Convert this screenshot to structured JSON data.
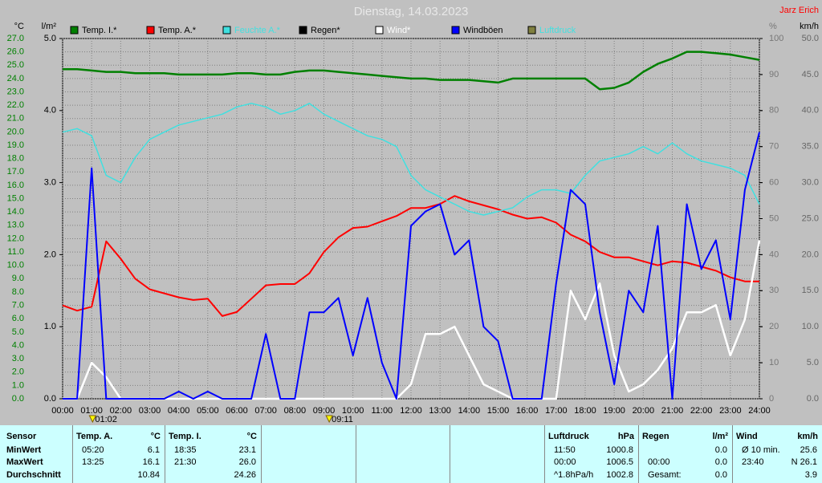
{
  "chart_data": {
    "type": "line",
    "title": "Dienstag, 14.03.2023",
    "subtitle": "Jarz Erich",
    "y_label": "°C",
    "y2_label": "l/m²",
    "y3_label": "%",
    "y4_label": "km/h",
    "grid": true,
    "xlim": [
      0,
      24
    ],
    "xticks": [
      {
        "value": 0,
        "label": "00:00"
      },
      {
        "value": 1,
        "label": "01:00"
      },
      {
        "value": 2,
        "label": "02:00"
      },
      {
        "value": 3,
        "label": "03:00"
      },
      {
        "value": 4,
        "label": "04:00"
      },
      {
        "value": 5,
        "label": "05:00"
      },
      {
        "value": 6,
        "label": "06:00"
      },
      {
        "value": 7,
        "label": "07:00"
      },
      {
        "value": 8,
        "label": "08:00"
      },
      {
        "value": 9,
        "label": "09:00"
      },
      {
        "value": 10,
        "label": "10:00"
      },
      {
        "value": 11,
        "label": "11:00"
      },
      {
        "value": 12,
        "label": "12:00"
      },
      {
        "value": 13,
        "label": "13:00"
      },
      {
        "value": 14,
        "label": "14:00"
      },
      {
        "value": 15,
        "label": "15:00"
      },
      {
        "value": 16,
        "label": "16:00"
      },
      {
        "value": 17,
        "label": "17:00"
      },
      {
        "value": 18,
        "label": "18:00"
      },
      {
        "value": 19,
        "label": "19:00"
      },
      {
        "value": 20,
        "label": "20:00"
      },
      {
        "value": 21,
        "label": "21:00"
      },
      {
        "value": 22,
        "label": "22:00"
      },
      {
        "value": 23,
        "label": "23:00"
      },
      {
        "value": 24,
        "label": "24:00"
      }
    ],
    "ylim": [
      0,
      27
    ],
    "yticks": [
      {
        "value": 0,
        "label": "0.0"
      },
      {
        "value": 1,
        "label": "1.0"
      },
      {
        "value": 2,
        "label": "2.0"
      },
      {
        "value": 3,
        "label": "3.0"
      },
      {
        "value": 4,
        "label": "4.0"
      },
      {
        "value": 5,
        "label": "5.0"
      },
      {
        "value": 6,
        "label": "6.0"
      },
      {
        "value": 7,
        "label": "7.0"
      },
      {
        "value": 8,
        "label": "8.0"
      },
      {
        "value": 9,
        "label": "9.0"
      },
      {
        "value": 10,
        "label": "10.0"
      },
      {
        "value": 11,
        "label": "11.0"
      },
      {
        "value": 12,
        "label": "12.0"
      },
      {
        "value": 13,
        "label": "13.0"
      },
      {
        "value": 14,
        "label": "14.0"
      },
      {
        "value": 15,
        "label": "15.0"
      },
      {
        "value": 16,
        "label": "16.0"
      },
      {
        "value": 17,
        "label": "17.0"
      },
      {
        "value": 18,
        "label": "18.0"
      },
      {
        "value": 19,
        "label": "19.0"
      },
      {
        "value": 20,
        "label": "20.0"
      },
      {
        "value": 21,
        "label": "21.0"
      },
      {
        "value": 22,
        "label": "22.0"
      },
      {
        "value": 23,
        "label": "23.0"
      },
      {
        "value": 24,
        "label": "24.0"
      },
      {
        "value": 25,
        "label": "25.0"
      },
      {
        "value": 26,
        "label": "26.0"
      },
      {
        "value": 27,
        "label": "27.0"
      }
    ],
    "y2lim": [
      0,
      5
    ],
    "y2ticks": [
      {
        "value": 0,
        "label": "0.0"
      },
      {
        "value": 1,
        "label": "1.0"
      },
      {
        "value": 2,
        "label": "2.0"
      },
      {
        "value": 3,
        "label": "3.0"
      },
      {
        "value": 4,
        "label": "4.0"
      },
      {
        "value": 5,
        "label": "5.0"
      }
    ],
    "y3lim": [
      0,
      100
    ],
    "y3ticks": [
      0,
      10,
      20,
      30,
      40,
      50,
      60,
      70,
      80,
      90,
      100
    ],
    "y4lim": [
      0,
      50
    ],
    "y4ticks": [
      {
        "value": 0,
        "label": "0.0"
      },
      {
        "value": 5,
        "label": "5.0"
      },
      {
        "value": 10,
        "label": "10.0"
      },
      {
        "value": 15,
        "label": "15.0"
      },
      {
        "value": 20,
        "label": "20.0"
      },
      {
        "value": 25,
        "label": "25.0"
      },
      {
        "value": 30,
        "label": "30.0"
      },
      {
        "value": 35,
        "label": "35.0"
      },
      {
        "value": 40,
        "label": "40.0"
      },
      {
        "value": 45,
        "label": "45.0"
      },
      {
        "value": 50,
        "label": "50.0"
      }
    ],
    "x": [
      0,
      0.5,
      1,
      1.5,
      2,
      2.5,
      3,
      3.5,
      4,
      4.5,
      5,
      5.5,
      6,
      6.5,
      7,
      7.5,
      8,
      8.5,
      9,
      9.5,
      10,
      10.5,
      11,
      11.5,
      12,
      12.5,
      13,
      13.5,
      14,
      14.5,
      15,
      15.5,
      16,
      16.5,
      17,
      17.5,
      18,
      18.5,
      19,
      19.5,
      20,
      20.5,
      21,
      21.5,
      22,
      22.5,
      23,
      23.5,
      24
    ],
    "series": [
      {
        "name": "Temp. I.*",
        "color": "#008000",
        "label_color": "#000000",
        "axis": "y",
        "width": 2.5,
        "values": [
          24.7,
          24.7,
          24.6,
          24.5,
          24.5,
          24.4,
          24.4,
          24.4,
          24.3,
          24.3,
          24.3,
          24.3,
          24.4,
          24.4,
          24.3,
          24.3,
          24.5,
          24.6,
          24.6,
          24.5,
          24.4,
          24.3,
          24.2,
          24.1,
          24.0,
          24.0,
          23.9,
          23.9,
          23.9,
          23.8,
          23.7,
          24.0,
          24.0,
          24.0,
          24.0,
          24.0,
          24.0,
          23.2,
          23.3,
          23.7,
          24.5,
          25.1,
          25.5,
          26.0,
          26.0,
          25.9,
          25.8,
          25.6,
          25.4
        ]
      },
      {
        "name": "Temp. A.*",
        "color": "#ff0000",
        "label_color": "#000000",
        "axis": "y",
        "width": 2,
        "values": [
          7.0,
          6.6,
          6.9,
          11.8,
          10.5,
          9.0,
          8.2,
          7.9,
          7.6,
          7.4,
          7.5,
          6.2,
          6.5,
          7.5,
          8.5,
          8.6,
          8.6,
          9.4,
          11.0,
          12.1,
          12.8,
          12.9,
          13.3,
          13.7,
          14.3,
          14.3,
          14.6,
          15.2,
          14.8,
          14.5,
          14.2,
          13.8,
          13.5,
          13.6,
          13.2,
          12.3,
          11.8,
          11.0,
          10.6,
          10.6,
          10.3,
          10.0,
          10.3,
          10.2,
          9.9,
          9.6,
          9.1,
          8.8,
          8.8
        ]
      },
      {
        "name": "Feuchte A.*",
        "color": "#40e0e0",
        "label_color": "#40e0e0",
        "axis": "y3",
        "width": 1.5,
        "values": [
          74,
          75,
          73,
          62,
          60,
          67,
          72,
          74,
          76,
          77,
          78,
          79,
          81,
          82,
          81,
          79,
          80,
          82,
          79,
          77,
          75,
          73,
          72,
          70,
          62,
          58,
          56,
          54,
          52,
          51,
          52,
          53,
          56,
          58,
          58,
          57,
          62,
          66,
          67,
          68,
          70,
          68,
          71,
          68,
          66,
          65,
          64,
          62,
          54
        ]
      },
      {
        "name": "Regen*",
        "color": "#000000",
        "label_color": "#000000"
      },
      {
        "name": "Wind*",
        "color": "#ffffff",
        "label_color": "#ffffff",
        "axis": "y4",
        "width": 2.5,
        "values": [
          0,
          0,
          5,
          3,
          0,
          0,
          0,
          0,
          0,
          0,
          0,
          0,
          0,
          0,
          0,
          0,
          0,
          0,
          0,
          0,
          0,
          0,
          0,
          0,
          2,
          9,
          9,
          10,
          6,
          2,
          1,
          0,
          0,
          0,
          0,
          15,
          11,
          16,
          6,
          1,
          2,
          4,
          7,
          12,
          12,
          13,
          6,
          11,
          22
        ]
      },
      {
        "name": "Windböen",
        "color": "#0000ff",
        "label_color": "#000000",
        "axis": "y4",
        "width": 2,
        "values": [
          0,
          0,
          32,
          0,
          0,
          0,
          0,
          0,
          1,
          0,
          1,
          0,
          0,
          0,
          9,
          0,
          0,
          12,
          12,
          14,
          6,
          14,
          5,
          0,
          24,
          26,
          27,
          20,
          22,
          10,
          8,
          0,
          0,
          0,
          16,
          29,
          27,
          12,
          2,
          15,
          12,
          24,
          0,
          27,
          18,
          22,
          11,
          29,
          37
        ]
      },
      {
        "name": "Luftdruck",
        "color": "#808040",
        "label_color": "#40e0e0"
      }
    ],
    "annotations": [
      {
        "x": 1.033,
        "text": "01:02"
      },
      {
        "x": 9.183,
        "text": "09:11"
      }
    ]
  },
  "table": {
    "row_labels": [
      "Sensor",
      "MinWert",
      "MaxWert",
      "Durchschnitt"
    ],
    "blocks": [
      {
        "title": "Temp. A.",
        "unit": "°C",
        "rows": [
          [
            "05:20",
            "6.1"
          ],
          [
            "13:25",
            "16.1"
          ],
          [
            "10.84"
          ]
        ]
      },
      {
        "title": "Temp. I.",
        "unit": "°C",
        "rows": [
          [
            "18:35",
            "23.1"
          ],
          [
            "21:30",
            "26.0"
          ],
          [
            "24.26"
          ]
        ]
      },
      {
        "title": "Luftdruck",
        "unit": "hPa",
        "rows": [
          [
            "11:50",
            "1000.8"
          ],
          [
            "00:00",
            "1006.5"
          ],
          [
            "^1.8hPa/h",
            "1002.8"
          ]
        ]
      },
      {
        "title": "Regen",
        "unit": "l/m²",
        "rows": [
          [
            "0.0"
          ],
          [
            "00:00",
            "0.0"
          ],
          [
            "Gesamt:",
            "0.0"
          ]
        ]
      },
      {
        "title": "Wind",
        "unit": "km/h",
        "rows": [
          [
            "Ø 10 min.",
            "25.6"
          ],
          [
            "23:40",
            "N 26.1"
          ],
          [
            "3.9"
          ]
        ]
      }
    ]
  }
}
